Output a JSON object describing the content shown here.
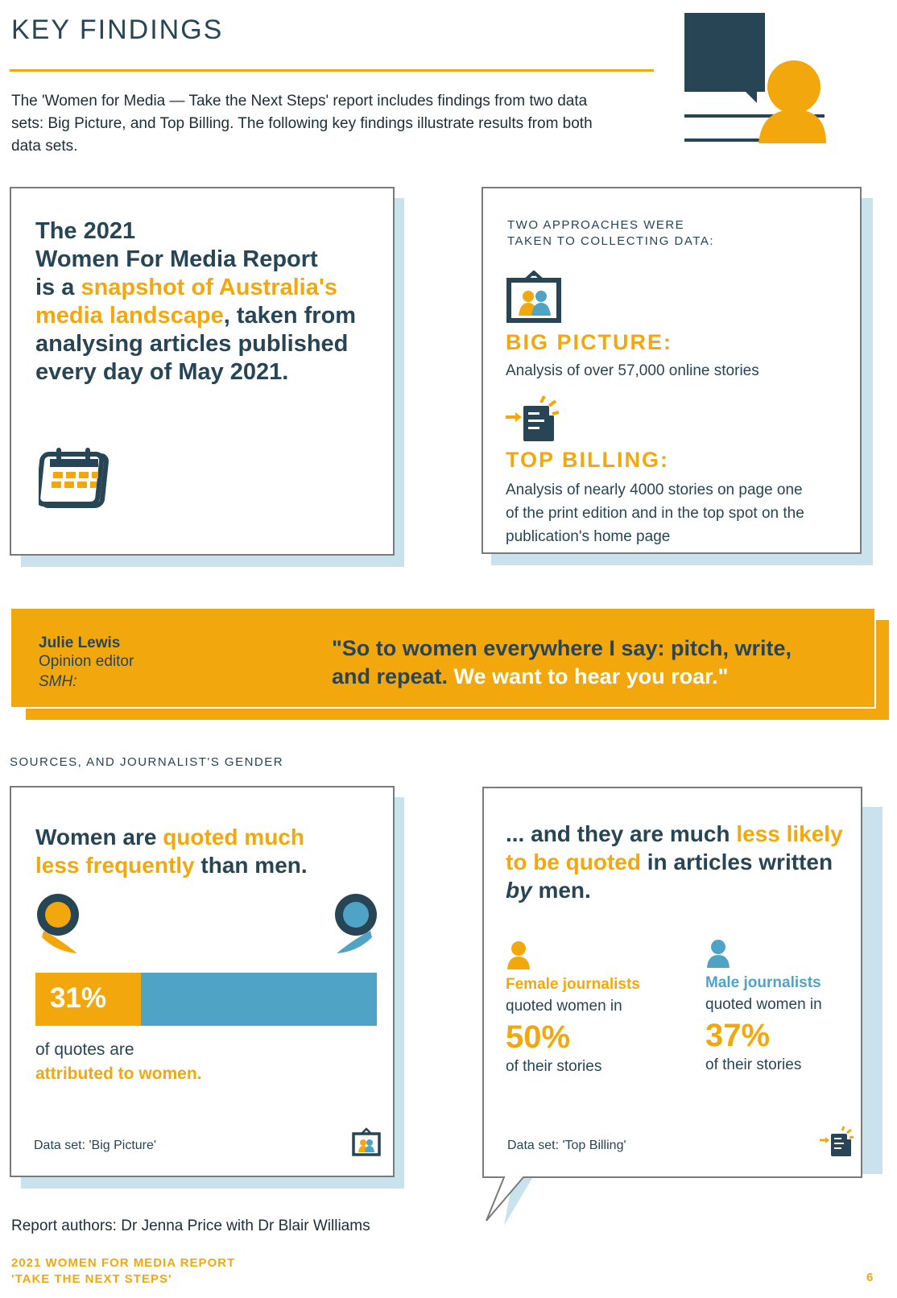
{
  "header": {
    "title": "KEY FINDINGS",
    "intro": "The 'Women for Media — Take the Next Steps' report includes findings from two data sets: Big Picture, and Top Billing. The following key findings illustrate results from both data sets."
  },
  "card_report": {
    "line1": "The 2021",
    "line2": "Women For Media Report",
    "line3_a": "is a ",
    "line3_b": "snapshot of Australia's",
    "line4_a": "media landscape",
    "line4_b": ", taken from",
    "line5": "analysing articles published",
    "line6": "every day of May 2021.",
    "icon": "calendar-icon"
  },
  "card_approaches": {
    "heading_1": "TWO APPROACHES WERE",
    "heading_2": "TAKEN TO COLLECTING DATA:",
    "big_picture_title": "BIG PICTURE:",
    "big_picture_desc": "Analysis of over 57,000 online stories",
    "top_billing_title": "TOP BILLING:",
    "top_billing_desc_1": "Analysis of nearly 4000 stories on page one",
    "top_billing_desc_2": "of the print edition and in the top spot on the",
    "top_billing_desc_3": "publication's home page"
  },
  "quote_band": {
    "name": "Julie Lewis",
    "role": "Opinion editor",
    "publication": "SMH:",
    "quote_a": "\"So to women everywhere I say: pitch, write,",
    "quote_b": "and repeat. ",
    "quote_c": "We want to hear you roar.\""
  },
  "section_label": "SOURCES, AND JOURNALIST'S GENDER",
  "card_quoted": {
    "t1_a": "Women are ",
    "t1_b": "quoted much",
    "t2_a": "less frequently",
    "t2_b": " than men.",
    "bar_label": "31%",
    "bar_fraction": 0.31,
    "foot1": "of quotes are",
    "foot2": "attributed to women.",
    "dataset": "Data set: 'Big Picture'"
  },
  "card_journalists": {
    "t1_a": "... and they are much ",
    "t1_b": "less likely",
    "t2_a": "to be quoted",
    "t2_b": " in articles written",
    "t3_a": "by",
    "t3_b": " men.",
    "female_title": "Female journalists",
    "female_quoted": "quoted women in",
    "female_pct": "50%",
    "female_tail": "of their stories",
    "male_title": "Male journalists",
    "male_quoted": "quoted women in",
    "male_pct": "37%",
    "male_tail": "of their stories",
    "dataset": "Data set: 'Top Billing'"
  },
  "footer": {
    "authors": "Report authors: Dr Jenna Price with Dr Blair Williams",
    "report_1": "2021 WOMEN FOR MEDIA REPORT",
    "report_2": "'TAKE THE NEXT STEPS'",
    "page": "6"
  },
  "colors": {
    "navy": "#274555",
    "gold": "#f2a80d",
    "blue": "#4fa3c4",
    "shadow": "#c9e2ec"
  }
}
